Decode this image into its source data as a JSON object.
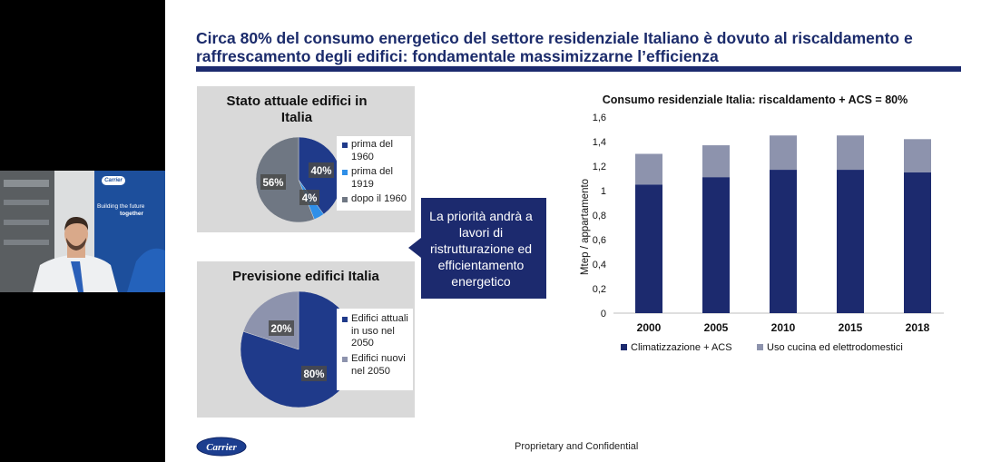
{
  "slide": {
    "title": "Circa 80% del consumo energetico del settore residenziale Italiano è dovuto al riscaldamento e raffrescamento degli edifici: fondamentale massimizzarne l’efficienza",
    "footer": "Proprietary and Confidential",
    "logo_text": "Carrier",
    "colors": {
      "navy": "#1c2a6e",
      "dark_blue": "#1f3a8a",
      "light_blue": "#2f8fe8",
      "gray": "#6f7783",
      "lavender": "#8d93ad"
    }
  },
  "webcam": {
    "banner_logo": "Carrier",
    "banner_line1": "Building the future",
    "banner_line2": "together"
  },
  "pie_current": {
    "title": "Stato attuale edifici in Italia",
    "slices": [
      {
        "label": "prima del 1960",
        "value": 40,
        "display": "40%",
        "color": "#1f3a8a"
      },
      {
        "label": "prima del 1919",
        "value": 4,
        "display": "4%",
        "color": "#2f8fe8"
      },
      {
        "label": "dopo il 1960",
        "value": 56,
        "display": "56%",
        "color": "#6f7783"
      }
    ]
  },
  "pie_forecast": {
    "title": "Previsione edifici Italia",
    "slices": [
      {
        "label": "Edifici attuali in uso nel 2050",
        "value": 80,
        "display": "80%",
        "color": "#1f3a8a"
      },
      {
        "label": "Edifici nuovi nel 2050",
        "value": 20,
        "display": "20%",
        "color": "#8d93ad"
      }
    ]
  },
  "callout": {
    "text": "La priorità andrà a lavori di ristrutturazione ed efficientamento energetico"
  },
  "chart_data": {
    "type": "bar",
    "stacked": true,
    "title": "Consumo residenziale Italia: riscaldamento + ACS = 80%",
    "ylabel": "Mtep / appartamento",
    "xlabel": "",
    "categories": [
      "2000",
      "2005",
      "2010",
      "2015",
      "2018"
    ],
    "ylim": [
      0,
      1.6
    ],
    "yticks": [
      "0",
      "0,2",
      "0,4",
      "0,6",
      "0,8",
      "1",
      "1,2",
      "1,4",
      "1,6"
    ],
    "series": [
      {
        "name": "Climatizzazione + ACS",
        "values": [
          1.05,
          1.11,
          1.17,
          1.17,
          1.15
        ],
        "color": "#1c2a6e"
      },
      {
        "name": "Uso cucina ed elettrodomestici",
        "values": [
          0.25,
          0.26,
          0.28,
          0.28,
          0.27
        ],
        "color": "#8d93ad"
      }
    ],
    "legend_position": "bottom"
  }
}
